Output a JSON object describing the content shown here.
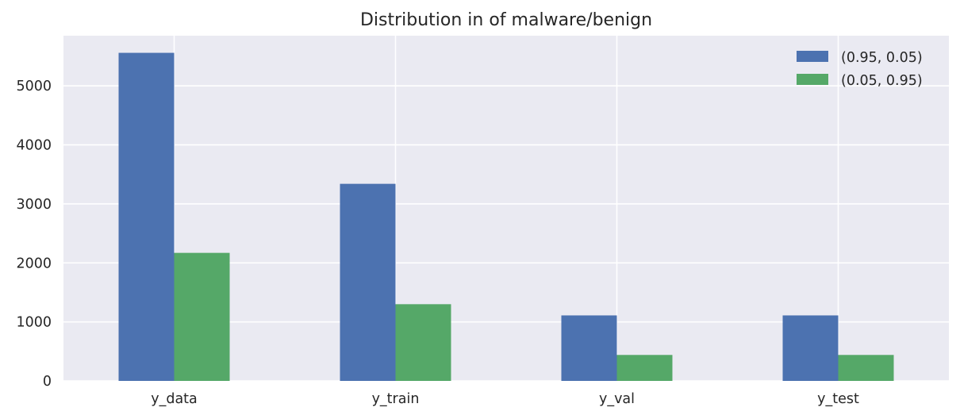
{
  "chart_data": {
    "type": "bar",
    "title": "Distribution in of malware/benign",
    "xlabel": "",
    "ylabel": "",
    "categories": [
      "y_data",
      "y_train",
      "y_val",
      "y_test"
    ],
    "series": [
      {
        "name": "(0.95, 0.05)",
        "color": "#4c72b0",
        "values": [
          5560,
          3340,
          1110,
          1110
        ]
      },
      {
        "name": "(0.05, 0.95)",
        "color": "#55a868",
        "values": [
          2170,
          1300,
          440,
          440
        ]
      }
    ],
    "ylim": [
      0,
      5850
    ],
    "yticks": [
      0,
      1000,
      2000,
      3000,
      4000,
      5000
    ],
    "grid": true,
    "legend_position": "top-right",
    "background": "#eaeaf2"
  }
}
